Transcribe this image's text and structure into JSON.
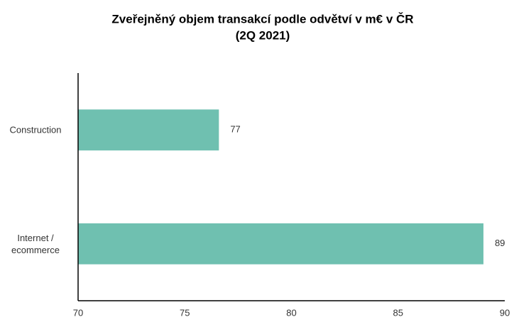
{
  "chart_data": {
    "type": "bar",
    "orientation": "horizontal",
    "title": [
      "Zveřejněný objem transakcí podle odvětví v m€ v ČR",
      "(2Q 2021)"
    ],
    "categories": [
      "Construction",
      "Internet / ecommerce"
    ],
    "values": [
      76.6,
      89
    ],
    "value_labels": [
      "77",
      "89"
    ],
    "color": "#6fc0b0",
    "xlim": [
      70,
      90
    ],
    "xticks": [
      70,
      75,
      80,
      85,
      90
    ],
    "grid": false
  }
}
